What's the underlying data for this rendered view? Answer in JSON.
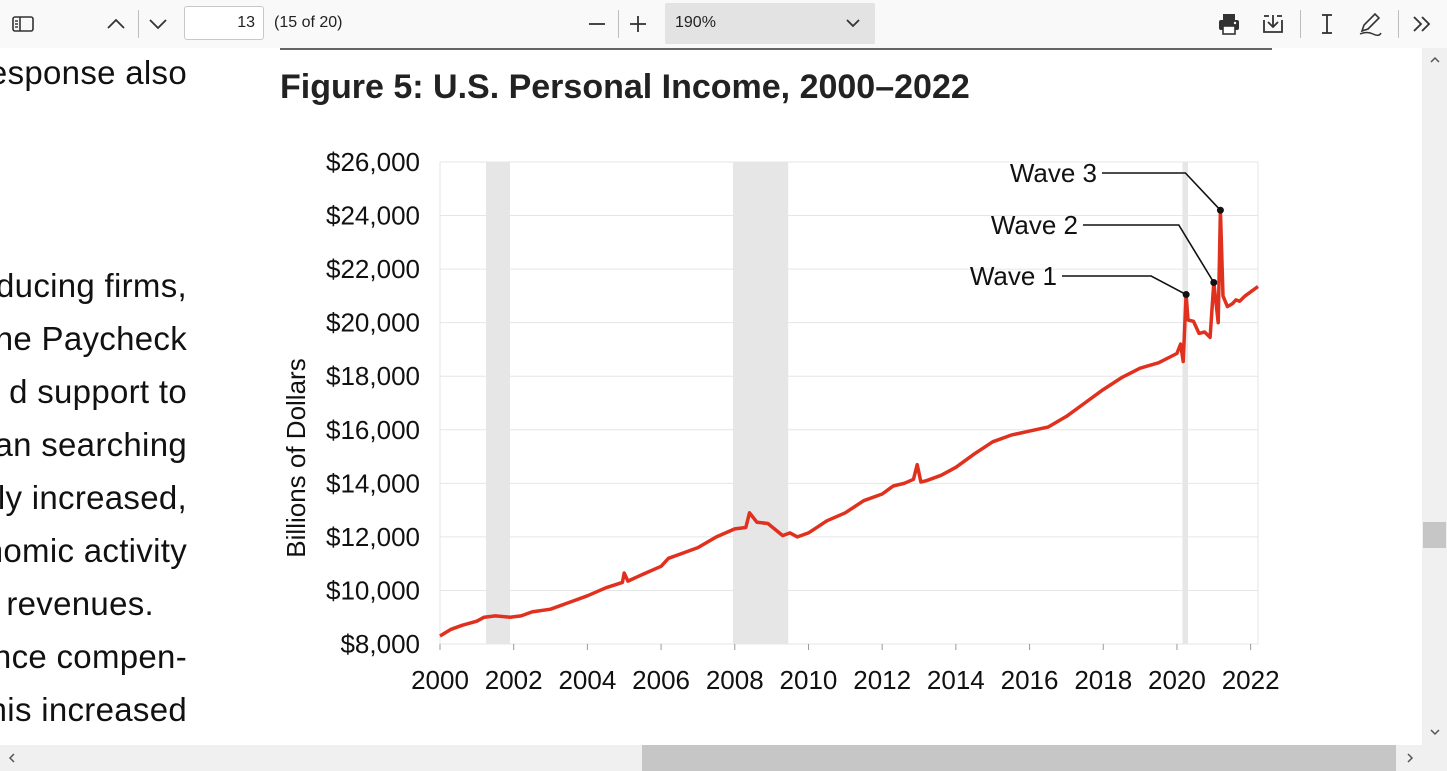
{
  "toolbar": {
    "page_number": "13",
    "page_count": "(15 of 20)",
    "zoom": "190%",
    "icons": [
      "sidebar-icon",
      "page-up-icon",
      "page-down-icon",
      "zoom-out-icon",
      "zoom-in-icon",
      "chevron-down-icon",
      "print-icon",
      "save-icon",
      "text-cursor-icon",
      "draw-icon",
      "more-tools-icon"
    ]
  },
  "body_text": [
    "response also",
    "ducing firms,",
    "he Paycheck",
    "d support to",
    "an searching",
    "lly increased,",
    "nomic activity",
    "x revenues.",
    "nce compen-",
    "nis increased"
  ],
  "figure": {
    "title": "Figure 5: U.S. Personal Income, 2000–2022"
  },
  "chart_data": {
    "type": "line",
    "title": "Figure 5: U.S. Personal Income, 2000–2022",
    "ylabel": "Billions of Dollars",
    "xlabel": "",
    "ylim": [
      8000,
      26000
    ],
    "xlim": [
      2000,
      2022.2
    ],
    "yticks": [
      "$8,000",
      "$10,000",
      "$12,000",
      "$14,000",
      "$16,000",
      "$18,000",
      "$20,000",
      "$22,000",
      "$24,000",
      "$26,000"
    ],
    "xticks": [
      "2000",
      "2002",
      "2004",
      "2006",
      "2008",
      "2010",
      "2012",
      "2014",
      "2016",
      "2018",
      "2020",
      "2022"
    ],
    "grid": true,
    "line_color": "#e0301e",
    "recession_color": "#e6e6e6",
    "recessions": [
      [
        2001.25,
        2001.9
      ],
      [
        2007.95,
        2009.45
      ],
      [
        2020.15,
        2020.3
      ]
    ],
    "series": [
      {
        "x": [
          2000.0,
          2000.3,
          2000.6,
          2001.0,
          2001.2,
          2001.5,
          2001.9,
          2002.2,
          2002.5,
          2003.0,
          2003.5,
          2004.0,
          2004.5,
          2004.95,
          2005.0,
          2005.1,
          2005.5,
          2006.0,
          2006.2,
          2006.6,
          2007.0,
          2007.5,
          2008.0,
          2008.3,
          2008.4,
          2008.6,
          2008.9,
          2009.3,
          2009.5,
          2009.7,
          2010.0,
          2010.5,
          2011.0,
          2011.5,
          2012.0,
          2012.3,
          2012.6,
          2012.85,
          2012.95,
          2013.05,
          2013.2,
          2013.6,
          2014.0,
          2014.5,
          2015.0,
          2015.5,
          2016.0,
          2016.5,
          2017.0,
          2017.5,
          2018.0,
          2018.5,
          2019.0,
          2019.5,
          2020.0,
          2020.1,
          2020.17,
          2020.25,
          2020.3,
          2020.45,
          2020.6,
          2020.75,
          2020.9,
          2021.0,
          2021.12,
          2021.18,
          2021.25,
          2021.37,
          2021.5,
          2021.6,
          2021.7,
          2021.85,
          2022.0,
          2022.2
        ],
        "values": [
          8300,
          8550,
          8700,
          8850,
          9000,
          9050,
          9000,
          9050,
          9200,
          9300,
          9550,
          9800,
          10100,
          10300,
          10650,
          10350,
          10600,
          10900,
          11200,
          11400,
          11600,
          12000,
          12300,
          12350,
          12900,
          12550,
          12500,
          12050,
          12150,
          12000,
          12150,
          12600,
          12900,
          13350,
          13600,
          13900,
          14000,
          14150,
          14700,
          14050,
          14100,
          14300,
          14600,
          15100,
          15550,
          15800,
          15950,
          16100,
          16500,
          17000,
          17500,
          17950,
          18300,
          18500,
          18850,
          19200,
          18550,
          21050,
          20100,
          20050,
          19600,
          19650,
          19450,
          21500,
          20000,
          24200,
          21000,
          20600,
          20700,
          20850,
          20800,
          21000,
          21150,
          21350
        ]
      }
    ],
    "annotations": [
      {
        "label": "Wave 1",
        "x": 2020.25,
        "y": 21050
      },
      {
        "label": "Wave 2",
        "x": 2021.0,
        "y": 21500
      },
      {
        "label": "Wave 3",
        "x": 2021.18,
        "y": 24200
      }
    ]
  }
}
